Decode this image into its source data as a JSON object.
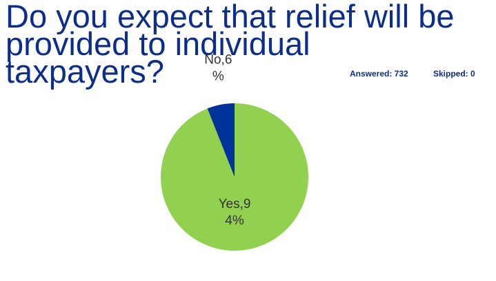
{
  "chart_data": {
    "type": "pie",
    "title": "Do you expect that relief will be provided to individual taxpayers?",
    "answered": "Answered: 732",
    "skipped": "Skipped: 0",
    "categories": [
      "Yes",
      "No"
    ],
    "values": [
      94,
      6
    ],
    "value_labels": [
      "Yes,94%",
      "No,6%"
    ],
    "colors": [
      "#92d050",
      "#003399"
    ]
  }
}
